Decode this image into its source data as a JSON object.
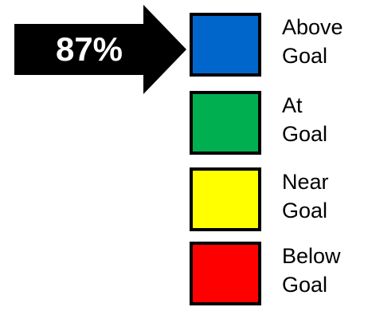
{
  "indicator": {
    "value": "87%",
    "points_to": "Above Goal"
  },
  "legend": [
    {
      "line1": "Above",
      "line2": "Goal",
      "color": "#0066CC"
    },
    {
      "line1": "At",
      "line2": "Goal",
      "color": "#00B050"
    },
    {
      "line1": "Near",
      "line2": "Goal",
      "color": "#FFFF00"
    },
    {
      "line1": "Below",
      "line2": "Goal",
      "color": "#FF0000"
    }
  ]
}
